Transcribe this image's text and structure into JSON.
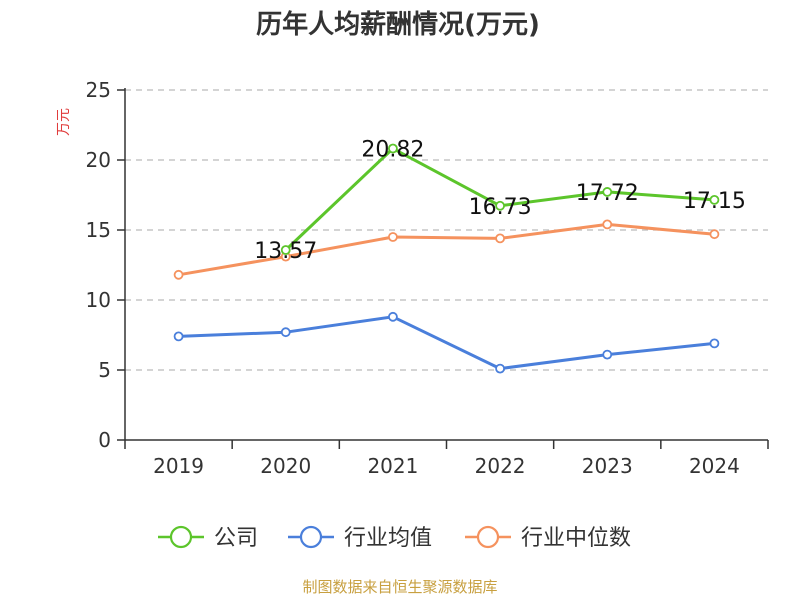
{
  "chart_data": {
    "type": "line",
    "title": "历年人均薪酬情况(万元)",
    "ylabel": "万元",
    "xlabel": "",
    "categories": [
      "2019",
      "2020",
      "2021",
      "2022",
      "2023",
      "2024"
    ],
    "ylim": [
      0,
      25
    ],
    "yticks": [
      0,
      5,
      10,
      15,
      20,
      25
    ],
    "grid": true,
    "legend_position": "bottom",
    "series": [
      {
        "name": "公司",
        "color": "#5cc52b",
        "values": [
          null,
          13.57,
          20.82,
          16.73,
          17.72,
          17.15
        ],
        "data_labels": [
          "",
          "13.57",
          "20.82",
          "16.73",
          "17.72",
          "17.15"
        ]
      },
      {
        "name": "行业均值",
        "color": "#4a7fdb",
        "values": [
          7.4,
          7.7,
          8.8,
          5.1,
          6.1,
          6.9
        ]
      },
      {
        "name": "行业中位数",
        "color": "#f5925e",
        "values": [
          11.8,
          13.1,
          14.5,
          14.4,
          15.4,
          14.7
        ]
      }
    ]
  },
  "footer": {
    "source": "制图数据来自恒生聚源数据库"
  }
}
